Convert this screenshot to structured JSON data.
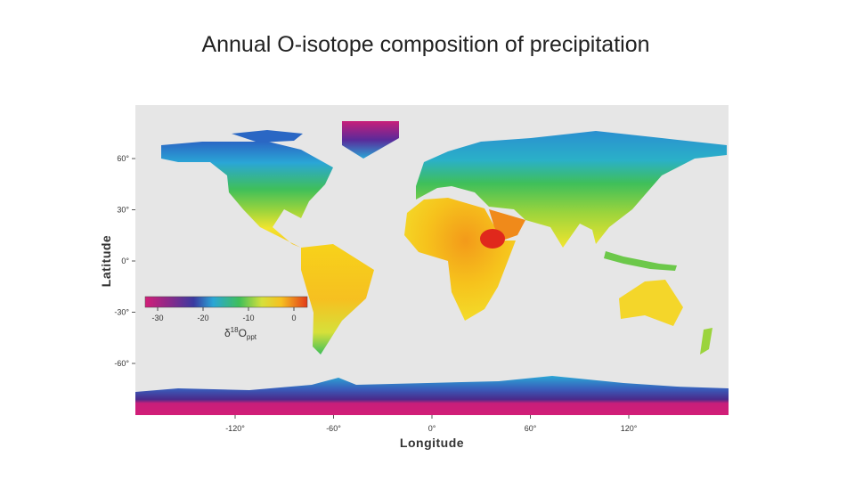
{
  "title": "Annual O-isotope composition of precipitation",
  "map": {
    "y_label": "Latitude",
    "x_label": "Longitude",
    "lat_ticks": [
      "60°",
      "30°",
      "0°",
      "-30°",
      "-60°"
    ],
    "lon_ticks": [
      "-120°",
      "-60°",
      "0°",
      "60°",
      "120°"
    ],
    "colorbar": {
      "ticks": [
        "-30",
        "-20",
        "-10",
        "0"
      ],
      "label": {
        "symbol": "δ",
        "superscript": "18",
        "base": "O",
        "subscript": "ppt"
      }
    }
  }
}
